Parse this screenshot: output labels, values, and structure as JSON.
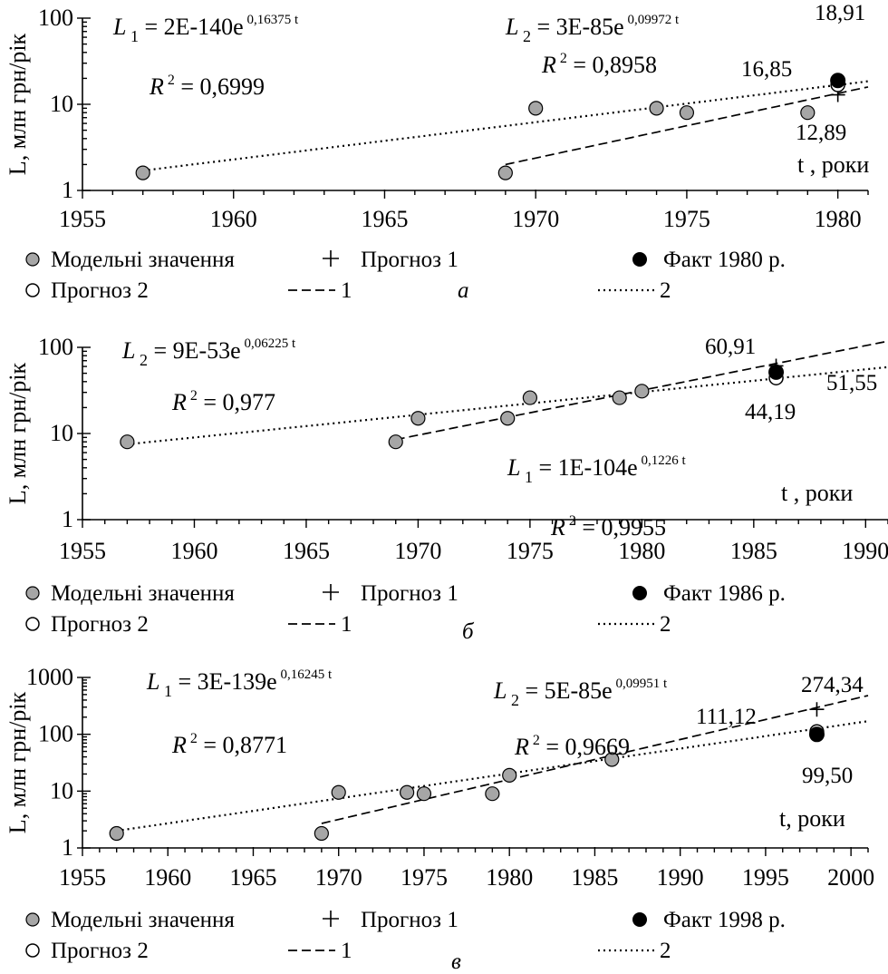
{
  "chart_data": [
    {
      "type": "scatter",
      "scale": "log-y",
      "ylabel": "L, млн грн/рік",
      "xlabel": "t , роки",
      "xlim": [
        1955,
        1981
      ],
      "ylim": [
        1,
        100
      ],
      "x_ticks": [
        "1955",
        "1960",
        "1965",
        "1970",
        "1975",
        "1980"
      ],
      "y_ticks": [
        "1",
        "10",
        "100"
      ],
      "panel_label": "а",
      "grid": false,
      "series": [
        {
          "name": "Модельні значення",
          "marker": "grey-circle",
          "x": [
            1957,
            1969,
            1970,
            1974,
            1975,
            1979,
            1980
          ],
          "y": [
            1.6,
            1.6,
            9.0,
            9.0,
            8.0,
            8.0,
            18.91
          ]
        },
        {
          "name": "1",
          "line": "dashed",
          "x": [
            1969,
            1981
          ],
          "y": [
            2.0,
            15.9
          ]
        },
        {
          "name": "2",
          "line": "dotted",
          "x": [
            1957,
            1981
          ],
          "y": [
            1.7,
            18.5
          ]
        },
        {
          "name": "Прогноз 1",
          "marker": "plus",
          "x": [
            1980
          ],
          "y": [
            12.89
          ]
        },
        {
          "name": "Прогноз 2",
          "marker": "open-circle",
          "x": [
            1980
          ],
          "y": [
            16.85
          ]
        },
        {
          "name": "Факт 1980 р.",
          "marker": "black-circle",
          "x": [
            1980
          ],
          "y": [
            18.91
          ]
        }
      ],
      "equations": [
        {
          "lhs": "L",
          "sub": "1",
          "rhs": "= 2E-140e",
          "exp": "0,16375 t",
          "r2": "= 0,6999"
        },
        {
          "lhs": "L",
          "sub": "2",
          "rhs": "= 3E-85e",
          "exp": "0,09972 t",
          "r2": "= 0,8958"
        }
      ],
      "annotations": [
        "18,91",
        "16,85",
        "12,89"
      ],
      "legend": [
        "Модельні значення",
        "Прогноз 1",
        "Факт 1980 р.",
        "Прогноз 2",
        "1",
        "2"
      ]
    },
    {
      "type": "scatter",
      "scale": "log-y",
      "ylabel": "L, млн грн/рік",
      "xlabel": "t , роки",
      "xlim": [
        1955,
        1991
      ],
      "ylim": [
        1,
        100
      ],
      "x_ticks": [
        "1955",
        "1960",
        "1965",
        "1970",
        "1975",
        "1980",
        "1985",
        "1990"
      ],
      "y_ticks": [
        "1",
        "10",
        "100"
      ],
      "panel_label": "б",
      "grid": false,
      "series": [
        {
          "name": "Модельні значення",
          "marker": "grey-circle",
          "x": [
            1957,
            1969,
            1970,
            1974,
            1975,
            1979,
            1980
          ],
          "y": [
            8.0,
            8.0,
            15.0,
            15.0,
            26.0,
            26.0,
            31.0
          ]
        },
        {
          "name": "1",
          "line": "dashed",
          "x": [
            1969,
            1991
          ],
          "y": [
            8.5,
            118
          ]
        },
        {
          "name": "2",
          "line": "dotted",
          "x": [
            1957,
            1991
          ],
          "y": [
            7.5,
            59
          ]
        },
        {
          "name": "Прогноз 1",
          "marker": "plus",
          "x": [
            1986
          ],
          "y": [
            60.91
          ]
        },
        {
          "name": "Прогноз 2",
          "marker": "open-circle",
          "x": [
            1986
          ],
          "y": [
            44.19
          ]
        },
        {
          "name": "Факт 1986 р.",
          "marker": "black-circle",
          "x": [
            1986
          ],
          "y": [
            51.55
          ]
        }
      ],
      "equations": [
        {
          "lhs": "L",
          "sub": "2",
          "rhs": "= 9E-53e",
          "exp": "0,06225 t",
          "r2": "= 0,977"
        },
        {
          "lhs": "L",
          "sub": "1",
          "rhs": "= 1E-104e",
          "exp": "0,1226 t",
          "r2": "= 0,9955"
        }
      ],
      "annotations": [
        "60,91",
        "44,19",
        "51,55"
      ],
      "legend": [
        "Модельні значення",
        "Прогноз 1",
        "Факт 1986 р.",
        "Прогноз 2",
        "1",
        "2"
      ]
    },
    {
      "type": "scatter",
      "scale": "log-y",
      "ylabel": "L, млн грн/рік",
      "xlabel": "t, роки",
      "xlim": [
        1955,
        2001
      ],
      "ylim": [
        1,
        1000
      ],
      "x_ticks": [
        "1955",
        "1960",
        "1965",
        "1970",
        "1975",
        "1980",
        "1985",
        "1990",
        "1995",
        "2000"
      ],
      "y_ticks": [
        "1",
        "10",
        "100",
        "1000"
      ],
      "panel_label": "в",
      "grid": false,
      "series": [
        {
          "name": "Модельні значення",
          "marker": "grey-circle",
          "x": [
            1957,
            1969,
            1970,
            1974,
            1975,
            1979,
            1980,
            1986
          ],
          "y": [
            1.8,
            1.8,
            9.5,
            9.5,
            9.0,
            9.0,
            19.0,
            36.0
          ]
        },
        {
          "name": "1",
          "line": "dashed",
          "x": [
            1969,
            2001
          ],
          "y": [
            2.7,
            480
          ]
        },
        {
          "name": "2",
          "line": "dotted",
          "x": [
            1957,
            2001
          ],
          "y": [
            2.0,
            170
          ]
        },
        {
          "name": "Прогноз 1",
          "marker": "plus",
          "x": [
            1998
          ],
          "y": [
            274.34
          ]
        },
        {
          "name": "Прогноз 2",
          "marker": "open-circle",
          "x": [
            1998
          ],
          "y": [
            111.12
          ]
        },
        {
          "name": "Факт 1998 р.",
          "marker": "black-circle",
          "x": [
            1998
          ],
          "y": [
            99.5
          ]
        }
      ],
      "equations": [
        {
          "lhs": "L",
          "sub": "1",
          "rhs": "= 3E-139e",
          "exp": "0,16245 t",
          "r2": "= 0,8771"
        },
        {
          "lhs": "L",
          "sub": "2",
          "rhs": "= 5E-85e",
          "exp": "0,09951 t",
          "r2": "= 0,9669"
        }
      ],
      "annotations": [
        "274,34",
        "111,12",
        "99,50"
      ],
      "legend": [
        "Модельні значення",
        "Прогноз 1",
        "Факт 1998 р.",
        "Прогноз 2",
        "1",
        "2"
      ]
    }
  ]
}
